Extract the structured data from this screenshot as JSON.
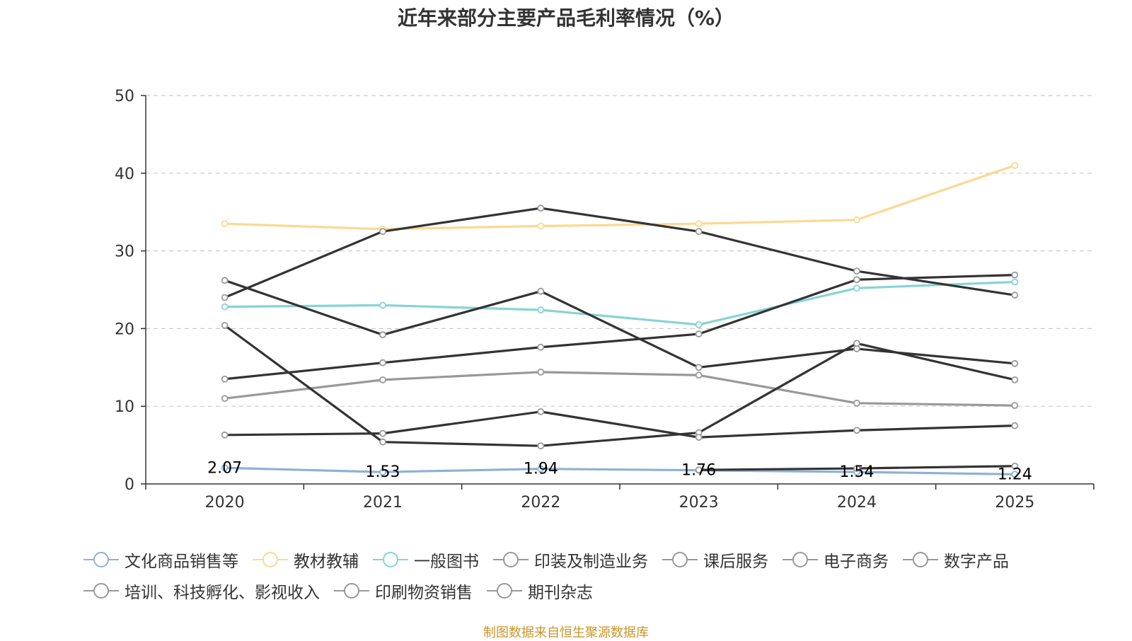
{
  "chart_data": {
    "type": "line",
    "title": "近年来部分主要产品毛利率情况（%）",
    "xlabel": "",
    "ylabel": "",
    "categories": [
      "2020",
      "2021",
      "2022",
      "2023",
      "2024",
      "2025"
    ],
    "ylim": [
      0,
      50
    ],
    "yticks": [
      "0",
      "10",
      "20",
      "30",
      "40",
      "50"
    ],
    "grid": true,
    "legend_position": "bottom",
    "series": [
      {
        "name": "文化商品销售等",
        "color": "#8fb0d9",
        "values": [
          2.07,
          1.53,
          1.94,
          1.76,
          1.54,
          1.24
        ],
        "labels": [
          "2.07",
          "1.53",
          "1.94",
          "1.76",
          "1.54",
          "1.24"
        ]
      },
      {
        "name": "教材教辅",
        "color": "#fcd992",
        "values": [
          33.5,
          32.8,
          33.2,
          33.5,
          34.0,
          41.0
        ]
      },
      {
        "name": "一般图书",
        "color": "#86d4d4",
        "values": [
          22.8,
          23.0,
          22.4,
          20.5,
          25.2,
          26.0
        ]
      },
      {
        "name": "印装及制造业务",
        "color": "#333333",
        "values": [
          24.0,
          32.5,
          35.5,
          32.5,
          27.4,
          24.3
        ]
      },
      {
        "name": "课后服务",
        "color": "#333333",
        "values": [
          26.2,
          19.2,
          24.8,
          15.0,
          17.4,
          15.5
        ]
      },
      {
        "name": "电子商务",
        "color": "#333333",
        "values": [
          13.5,
          15.6,
          17.6,
          19.3,
          26.3,
          26.9
        ]
      },
      {
        "name": "数字产品",
        "color": "#999999",
        "values": [
          11.0,
          13.4,
          14.4,
          14.0,
          10.4,
          10.1
        ]
      },
      {
        "name": "培训、科技孵化、影视收入",
        "color": "#333333",
        "values": [
          20.4,
          5.4,
          4.9,
          6.6,
          18.1,
          13.4
        ]
      },
      {
        "name": "印刷物资销售",
        "color": "#333333",
        "values": [
          6.3,
          6.5,
          9.3,
          6.0,
          6.9,
          7.5
        ]
      },
      {
        "name": "期刊杂志",
        "color": "#333333",
        "values": [
          null,
          null,
          null,
          1.8,
          2.0,
          2.3
        ]
      }
    ]
  },
  "source_note": "制图数据来自恒生聚源数据库",
  "colors": {
    "axis": "#333333",
    "grid": "#cccccc",
    "text": "#333333",
    "legend_symbol": "#999999",
    "source": "#c9962a"
  }
}
